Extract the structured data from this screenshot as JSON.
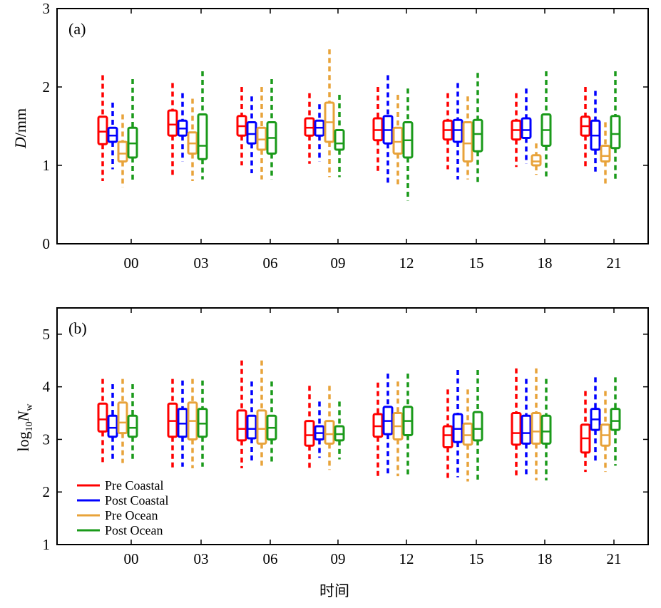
{
  "colors": {
    "pre_coastal": "#ff0000",
    "post_coastal": "#0000ff",
    "pre_ocean": "#e8a33a",
    "post_ocean": "#1a9a1a"
  },
  "chart_data": [
    {
      "type": "box",
      "panel_label": "(a)",
      "ylabel_italic": "D",
      "ylabel_rest": "/mm",
      "ylim": [
        0,
        3
      ],
      "yticks": [
        "0",
        "1",
        "2",
        "3"
      ],
      "categories": [
        "00",
        "03",
        "06",
        "09",
        "12",
        "15",
        "18",
        "21"
      ],
      "series": [
        {
          "name": "Pre Coastal",
          "color_key": "pre_coastal",
          "boxes": [
            {
              "whisker_low": 0.8,
              "q1": 1.27,
              "median": 1.43,
              "q3": 1.62,
              "whisker_high": 2.15
            },
            {
              "whisker_low": 0.88,
              "q1": 1.38,
              "median": 1.52,
              "q3": 1.7,
              "whisker_high": 2.05
            },
            {
              "whisker_low": 1.0,
              "q1": 1.38,
              "median": 1.5,
              "q3": 1.63,
              "whisker_high": 2.0
            },
            {
              "whisker_low": 1.02,
              "q1": 1.38,
              "median": 1.48,
              "q3": 1.6,
              "whisker_high": 1.92
            },
            {
              "whisker_low": 0.92,
              "q1": 1.32,
              "median": 1.45,
              "q3": 1.6,
              "whisker_high": 2.0
            },
            {
              "whisker_low": 0.95,
              "q1": 1.33,
              "median": 1.45,
              "q3": 1.57,
              "whisker_high": 1.92
            },
            {
              "whisker_low": 0.98,
              "q1": 1.33,
              "median": 1.45,
              "q3": 1.57,
              "whisker_high": 1.92
            },
            {
              "whisker_low": 0.98,
              "q1": 1.38,
              "median": 1.5,
              "q3": 1.62,
              "whisker_high": 2.0
            }
          ]
        },
        {
          "name": "Post Coastal",
          "color_key": "post_coastal",
          "boxes": [
            {
              "whisker_low": 0.95,
              "q1": 1.3,
              "median": 1.38,
              "q3": 1.48,
              "whisker_high": 1.8
            },
            {
              "whisker_low": 1.05,
              "q1": 1.38,
              "median": 1.47,
              "q3": 1.57,
              "whisker_high": 1.92
            },
            {
              "whisker_low": 0.9,
              "q1": 1.28,
              "median": 1.4,
              "q3": 1.55,
              "whisker_high": 1.88
            },
            {
              "whisker_low": 1.05,
              "q1": 1.38,
              "median": 1.48,
              "q3": 1.57,
              "whisker_high": 1.78
            },
            {
              "whisker_low": 0.78,
              "q1": 1.28,
              "median": 1.45,
              "q3": 1.63,
              "whisker_high": 2.15
            },
            {
              "whisker_low": 0.82,
              "q1": 1.3,
              "median": 1.45,
              "q3": 1.58,
              "whisker_high": 2.05
            },
            {
              "whisker_low": 1.02,
              "q1": 1.35,
              "median": 1.45,
              "q3": 1.6,
              "whisker_high": 1.98
            },
            {
              "whisker_low": 0.92,
              "q1": 1.2,
              "median": 1.38,
              "q3": 1.57,
              "whisker_high": 1.95
            }
          ]
        },
        {
          "name": "Pre Ocean",
          "color_key": "pre_ocean",
          "boxes": [
            {
              "whisker_low": 0.72,
              "q1": 1.05,
              "median": 1.15,
              "q3": 1.3,
              "whisker_high": 1.65
            },
            {
              "whisker_low": 0.8,
              "q1": 1.15,
              "median": 1.28,
              "q3": 1.42,
              "whisker_high": 1.85
            },
            {
              "whisker_low": 0.82,
              "q1": 1.2,
              "median": 1.33,
              "q3": 1.48,
              "whisker_high": 2.0
            },
            {
              "whisker_low": 0.85,
              "q1": 1.3,
              "median": 1.55,
              "q3": 1.8,
              "whisker_high": 2.48
            },
            {
              "whisker_low": 0.75,
              "q1": 1.15,
              "median": 1.3,
              "q3": 1.48,
              "whisker_high": 1.9
            },
            {
              "whisker_low": 0.82,
              "q1": 1.05,
              "median": 1.28,
              "q3": 1.55,
              "whisker_high": 1.88
            },
            {
              "whisker_low": 0.88,
              "q1": 1.0,
              "median": 1.05,
              "q3": 1.13,
              "whisker_high": 1.28
            },
            {
              "whisker_low": 0.75,
              "q1": 1.05,
              "median": 1.12,
              "q3": 1.25,
              "whisker_high": 1.55
            }
          ]
        },
        {
          "name": "Post Ocean",
          "color_key": "post_ocean",
          "boxes": [
            {
              "whisker_low": 0.8,
              "q1": 1.1,
              "median": 1.28,
              "q3": 1.48,
              "whisker_high": 2.1
            },
            {
              "whisker_low": 0.82,
              "q1": 1.08,
              "median": 1.25,
              "q3": 1.65,
              "whisker_high": 2.2
            },
            {
              "whisker_low": 0.82,
              "q1": 1.15,
              "median": 1.35,
              "q3": 1.55,
              "whisker_high": 2.1
            },
            {
              "whisker_low": 0.85,
              "q1": 1.2,
              "median": 1.28,
              "q3": 1.45,
              "whisker_high": 1.9
            },
            {
              "whisker_low": 0.55,
              "q1": 1.1,
              "median": 1.32,
              "q3": 1.55,
              "whisker_high": 1.98
            },
            {
              "whisker_low": 0.78,
              "q1": 1.18,
              "median": 1.4,
              "q3": 1.58,
              "whisker_high": 2.18
            },
            {
              "whisker_low": 0.82,
              "q1": 1.25,
              "median": 1.45,
              "q3": 1.65,
              "whisker_high": 2.2
            },
            {
              "whisker_low": 0.82,
              "q1": 1.22,
              "median": 1.4,
              "q3": 1.63,
              "whisker_high": 2.2
            }
          ]
        }
      ]
    },
    {
      "type": "box",
      "panel_label": "(b)",
      "ylabel_prefix": "log",
      "ylabel_sub": "10",
      "ylabel_italic": "N",
      "ylabel_sub2": "w",
      "ylim": [
        1,
        5.5
      ],
      "yticks": [
        "1",
        "2",
        "3",
        "4",
        "5"
      ],
      "categories": [
        "00",
        "03",
        "06",
        "09",
        "12",
        "15",
        "18",
        "21"
      ],
      "xlabel": "时间",
      "series": [
        {
          "name": "Pre Coastal",
          "color_key": "pre_coastal",
          "boxes": [
            {
              "whisker_low": 2.5,
              "q1": 3.15,
              "median": 3.38,
              "q3": 3.68,
              "whisker_high": 4.15
            },
            {
              "whisker_low": 2.45,
              "q1": 3.05,
              "median": 3.35,
              "q3": 3.68,
              "whisker_high": 4.15
            },
            {
              "whisker_low": 2.45,
              "q1": 2.98,
              "median": 3.2,
              "q3": 3.55,
              "whisker_high": 4.5
            },
            {
              "whisker_low": 2.45,
              "q1": 2.88,
              "median": 3.08,
              "q3": 3.35,
              "whisker_high": 4.02
            },
            {
              "whisker_low": 2.3,
              "q1": 3.05,
              "median": 3.25,
              "q3": 3.48,
              "whisker_high": 4.08
            },
            {
              "whisker_low": 2.2,
              "q1": 2.85,
              "median": 3.08,
              "q3": 3.25,
              "whisker_high": 3.95
            },
            {
              "whisker_low": 2.25,
              "q1": 2.9,
              "median": 3.12,
              "q3": 3.5,
              "whisker_high": 4.35
            },
            {
              "whisker_low": 2.38,
              "q1": 2.75,
              "median": 3.02,
              "q3": 3.28,
              "whisker_high": 3.92
            }
          ]
        },
        {
          "name": "Post Coastal",
          "color_key": "post_coastal",
          "boxes": [
            {
              "whisker_low": 2.62,
              "q1": 3.05,
              "median": 3.22,
              "q3": 3.45,
              "whisker_high": 4.05
            },
            {
              "whisker_low": 2.48,
              "q1": 3.05,
              "median": 3.3,
              "q3": 3.58,
              "whisker_high": 4.12
            },
            {
              "whisker_low": 2.55,
              "q1": 3.02,
              "median": 3.2,
              "q3": 3.45,
              "whisker_high": 4.1
            },
            {
              "whisker_low": 2.65,
              "q1": 3.0,
              "median": 3.12,
              "q3": 3.25,
              "whisker_high": 3.72
            },
            {
              "whisker_low": 2.3,
              "q1": 3.1,
              "median": 3.35,
              "q3": 3.62,
              "whisker_high": 4.25
            },
            {
              "whisker_low": 2.28,
              "q1": 2.95,
              "median": 3.2,
              "q3": 3.48,
              "whisker_high": 4.32
            },
            {
              "whisker_low": 2.28,
              "q1": 2.92,
              "median": 3.12,
              "q3": 3.45,
              "whisker_high": 4.15
            },
            {
              "whisker_low": 2.55,
              "q1": 3.18,
              "median": 3.38,
              "q3": 3.58,
              "whisker_high": 4.18
            }
          ]
        },
        {
          "name": "Pre Ocean",
          "color_key": "pre_ocean",
          "boxes": [
            {
              "whisker_low": 2.55,
              "q1": 3.12,
              "median": 3.32,
              "q3": 3.7,
              "whisker_high": 4.15
            },
            {
              "whisker_low": 2.45,
              "q1": 3.0,
              "median": 3.35,
              "q3": 3.7,
              "whisker_high": 4.15
            },
            {
              "whisker_low": 2.45,
              "q1": 2.92,
              "median": 3.2,
              "q3": 3.55,
              "whisker_high": 4.5
            },
            {
              "whisker_low": 2.42,
              "q1": 2.92,
              "median": 3.1,
              "q3": 3.35,
              "whisker_high": 4.02
            },
            {
              "whisker_low": 2.3,
              "q1": 3.0,
              "median": 3.25,
              "q3": 3.5,
              "whisker_high": 4.1
            },
            {
              "whisker_low": 2.2,
              "q1": 2.9,
              "median": 3.08,
              "q3": 3.3,
              "whisker_high": 3.95
            },
            {
              "whisker_low": 2.22,
              "q1": 2.92,
              "median": 3.15,
              "q3": 3.5,
              "whisker_high": 4.35
            },
            {
              "whisker_low": 2.38,
              "q1": 2.88,
              "median": 3.08,
              "q3": 3.28,
              "whisker_high": 3.92
            }
          ]
        },
        {
          "name": "Post Ocean",
          "color_key": "post_ocean",
          "boxes": [
            {
              "whisker_low": 2.62,
              "q1": 3.05,
              "median": 3.22,
              "q3": 3.45,
              "whisker_high": 4.05
            },
            {
              "whisker_low": 2.48,
              "q1": 3.05,
              "median": 3.3,
              "q3": 3.58,
              "whisker_high": 4.12
            },
            {
              "whisker_low": 2.55,
              "q1": 3.0,
              "median": 3.22,
              "q3": 3.45,
              "whisker_high": 4.1
            },
            {
              "whisker_low": 2.62,
              "q1": 2.98,
              "median": 3.1,
              "q3": 3.25,
              "whisker_high": 3.72
            },
            {
              "whisker_low": 2.3,
              "q1": 3.08,
              "median": 3.35,
              "q3": 3.62,
              "whisker_high": 4.25
            },
            {
              "whisker_low": 2.22,
              "q1": 2.98,
              "median": 3.2,
              "q3": 3.52,
              "whisker_high": 4.32
            },
            {
              "whisker_low": 2.22,
              "q1": 2.92,
              "median": 3.15,
              "q3": 3.45,
              "whisker_high": 4.15
            },
            {
              "whisker_low": 2.5,
              "q1": 3.18,
              "median": 3.35,
              "q3": 3.58,
              "whisker_high": 4.18
            }
          ]
        }
      ],
      "legend": [
        {
          "label": "Pre Coastal",
          "color_key": "pre_coastal"
        },
        {
          "label": "Post Coastal",
          "color_key": "post_coastal"
        },
        {
          "label": "Pre Ocean",
          "color_key": "pre_ocean"
        },
        {
          "label": "Post Ocean",
          "color_key": "post_ocean"
        }
      ]
    }
  ]
}
